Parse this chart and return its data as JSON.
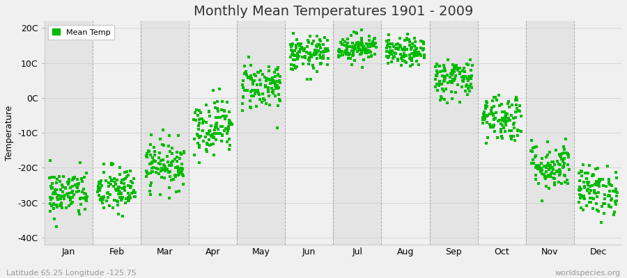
{
  "title": "Monthly Mean Temperatures 1901 - 2009",
  "ylabel": "Temperature",
  "subtitle": "Latitude 65.25 Longitude -125.75",
  "watermark": "worldspecies.org",
  "legend_label": "Mean Temp",
  "months": [
    "Jan",
    "Feb",
    "Mar",
    "Apr",
    "May",
    "Jun",
    "Jul",
    "Aug",
    "Sep",
    "Oct",
    "Nov",
    "Dec"
  ],
  "month_means": [
    -27.5,
    -26.5,
    -19.0,
    -8.0,
    3.5,
    12.5,
    14.5,
    13.0,
    5.5,
    -5.5,
    -19.5,
    -26.5
  ],
  "month_stds": [
    3.5,
    3.5,
    3.5,
    4.0,
    3.5,
    2.5,
    2.0,
    2.0,
    3.0,
    3.5,
    3.5,
    3.5
  ],
  "n_years": 109,
  "ylim": [
    -42,
    22
  ],
  "yticks": [
    -40,
    -30,
    -20,
    -10,
    0,
    10,
    20
  ],
  "ytick_labels": [
    "-40C",
    "-30C",
    "-20C",
    "-10C",
    "0C",
    "10C",
    "20C"
  ],
  "marker_color": "#00BB00",
  "marker_size": 3,
  "bg_color": "#f0f0f0",
  "plot_bg_color": "#f0f0f0",
  "band_light": "#f0f0f0",
  "band_dark": "#e4e4e4",
  "grid_color": "#888888",
  "title_fontsize": 14,
  "axis_fontsize": 9,
  "tick_fontsize": 9,
  "seed": 42
}
